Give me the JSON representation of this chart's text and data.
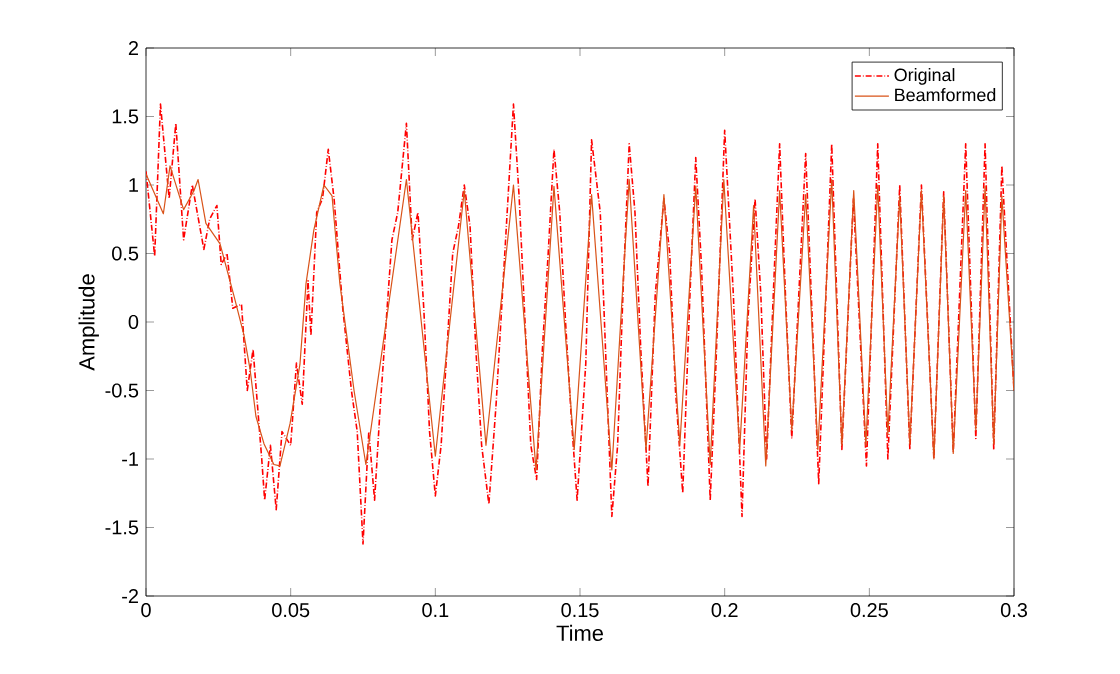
{
  "chart_data": {
    "type": "line",
    "xlabel": "Time",
    "ylabel": "Amplitude",
    "xlim": [
      0,
      0.3
    ],
    "ylim": [
      -2,
      2
    ],
    "xticks": [
      0,
      0.05,
      0.1,
      0.15,
      0.2,
      0.25,
      0.3
    ],
    "yticks": [
      -2,
      -1.5,
      -1,
      -0.5,
      0,
      0.5,
      1,
      1.5,
      2
    ],
    "legend": "top right",
    "grid": false,
    "marker": "none",
    "series": [
      {
        "name": "Original",
        "color": "#ff0000",
        "line_style": "dotted",
        "x": [
          0,
          0.003,
          0.005,
          0.008,
          0.0103,
          0.013,
          0.016,
          0.02,
          0.022,
          0.0245,
          0.026,
          0.028,
          0.03,
          0.033,
          0.035,
          0.037,
          0.04,
          0.041,
          0.043,
          0.045,
          0.047,
          0.05,
          0.052,
          0.054,
          0.056,
          0.057,
          0.059,
          0.061,
          0.063,
          0.065,
          0.068,
          0.071,
          0.073,
          0.075,
          0.077,
          0.079,
          0.081,
          0.083,
          0.085,
          0.087,
          0.09,
          0.092,
          0.094,
          0.096,
          0.098,
          0.1,
          0.102,
          0.104,
          0.106,
          0.108,
          0.11,
          0.112,
          0.114,
          0.116,
          0.1185,
          0.121,
          0.124,
          0.127,
          0.129,
          0.131,
          0.133,
          0.135,
          0.137,
          0.139,
          0.141,
          0.143,
          0.145,
          0.147,
          0.149,
          0.152,
          0.154,
          0.157,
          0.159,
          0.161,
          0.163,
          0.165,
          0.167,
          0.169,
          0.171,
          0.1735,
          0.176,
          0.179,
          0.181,
          0.183,
          0.1855,
          0.188,
          0.19,
          0.192,
          0.195,
          0.197,
          0.2,
          0.203,
          0.206,
          0.208,
          0.2105,
          0.2125,
          0.2145,
          0.217,
          0.219,
          0.221,
          0.2232,
          0.228,
          0.2325,
          0.237,
          0.2405,
          0.2445,
          0.249,
          0.2529,
          0.2564,
          0.2605,
          0.264,
          0.268,
          0.2723,
          0.2757,
          0.279,
          0.2833,
          0.2868,
          0.29,
          0.293,
          0.2958,
          0.3
        ],
        "values": [
          1.1,
          0.48,
          1.59,
          0.9,
          1.45,
          0.6,
          1.0,
          0.53,
          0.75,
          0.85,
          0.42,
          0.5,
          0.1,
          0.13,
          -0.5,
          -0.2,
          -1.0,
          -1.3,
          -0.9,
          -1.37,
          -0.8,
          -0.9,
          -0.3,
          -0.6,
          0.3,
          -0.1,
          0.8,
          0.9,
          1.26,
          0.9,
          0.1,
          -0.5,
          -0.8,
          -1.62,
          -0.8,
          -1.3,
          -0.6,
          0.0,
          0.6,
          0.8,
          1.45,
          0.6,
          0.8,
          0.1,
          -0.8,
          -1.27,
          -0.9,
          -0.2,
          0.5,
          0.7,
          1.0,
          0.7,
          -0.2,
          -0.9,
          -1.33,
          -0.6,
          0.5,
          1.59,
          0.9,
          0.0,
          -0.9,
          -1.15,
          -0.2,
          0.5,
          1.26,
          0.8,
          0.0,
          -0.7,
          -1.3,
          -0.3,
          1.33,
          0.8,
          -0.3,
          -1.42,
          -0.9,
          0.3,
          1.3,
          0.8,
          -0.2,
          -1.2,
          0.2,
          0.9,
          0.5,
          -0.5,
          -1.25,
          0.2,
          1.2,
          0.4,
          -1.3,
          -0.3,
          1.4,
          0.2,
          -1.42,
          0.0,
          0.9,
          0.2,
          -1.0,
          0.3,
          1.3,
          0.2,
          -0.85,
          1.23,
          -1.18,
          1.3,
          -0.93,
          0.9,
          -1.05,
          1.3,
          -1.0,
          1.0,
          -0.93,
          1.0,
          -1.0,
          0.95,
          -0.95,
          1.3,
          -0.85,
          1.3,
          -0.93,
          1.14,
          -0.5
        ]
      },
      {
        "name": "Beamformed",
        "color": "#d95319",
        "line_style": "solid",
        "x": [
          0,
          0.006,
          0.0083,
          0.013,
          0.0166,
          0.018,
          0.0207,
          0.0256,
          0.0304,
          0.0339,
          0.036,
          0.038,
          0.0408,
          0.0442,
          0.0463,
          0.0498,
          0.0532,
          0.0553,
          0.058,
          0.0615,
          0.0643,
          0.067,
          0.0719,
          0.076,
          0.09,
          0.1,
          0.11,
          0.1175,
          0.127,
          0.1348,
          0.141,
          0.148,
          0.154,
          0.161,
          0.167,
          0.1728,
          0.179,
          0.1845,
          0.19,
          0.195,
          0.1997,
          0.2052,
          0.21,
          0.2142,
          0.219,
          0.2232,
          0.228,
          0.2322,
          0.237,
          0.2405,
          0.2446,
          0.2488,
          0.2529,
          0.2564,
          0.2605,
          0.264,
          0.268,
          0.2723,
          0.2757,
          0.279,
          0.2833,
          0.2868,
          0.29,
          0.293,
          0.2958,
          0.3
        ],
        "values": [
          1.08,
          0.79,
          1.14,
          0.82,
          0.96,
          1.04,
          0.72,
          0.57,
          0.19,
          -0.1,
          -0.35,
          -0.69,
          -0.89,
          -1.04,
          -1.05,
          -0.74,
          -0.31,
          0.28,
          0.67,
          1.0,
          0.92,
          0.28,
          -0.5,
          -1.04,
          1.04,
          -0.98,
          0.96,
          -0.9,
          1.0,
          -1.08,
          0.99,
          -0.93,
          0.93,
          -1.08,
          1.04,
          -0.93,
          0.93,
          -0.9,
          0.99,
          -1.04,
          1.04,
          -0.93,
          0.85,
          -1.05,
          0.96,
          -0.79,
          0.93,
          -0.93,
          1.04,
          -0.9,
          0.96,
          -0.9,
          1.0,
          -0.82,
          0.92,
          -0.89,
          0.96,
          -1.0,
          0.92,
          -0.96,
          0.96,
          -0.79,
          0.99,
          -0.89,
          0.92,
          -0.5
        ]
      }
    ]
  }
}
